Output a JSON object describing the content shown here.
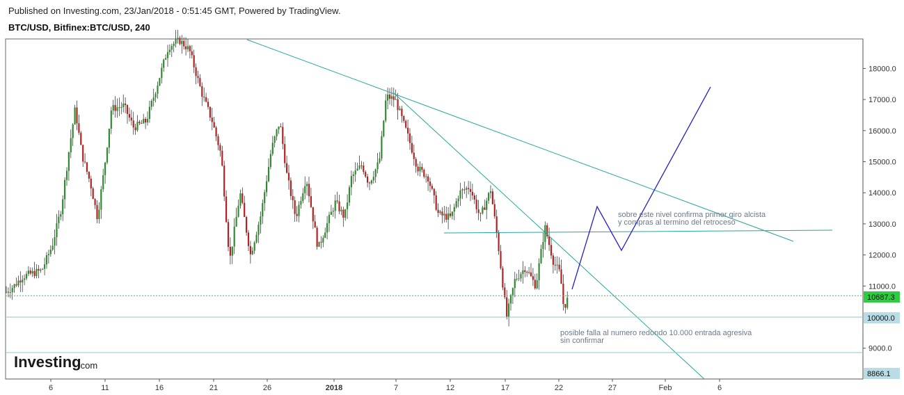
{
  "header": {
    "published": "Published on Investing.com, 23/Jan/2018 - 0:51:45 GMT, Powered by TradingView.",
    "symbol": "BTC/USD, Bitfinex:BTC/USD, 240"
  },
  "logo": {
    "text": "Investing",
    "suffix": ".com"
  },
  "chart_data": {
    "type": "candlestick",
    "y_ticks": [
      "18000.0",
      "17000.0",
      "16000.0",
      "15000.0",
      "14000.0",
      "13000.0",
      "12000.0",
      "11000.0",
      "9000.0"
    ],
    "x_ticks": [
      "6",
      "11",
      "16",
      "21",
      "26",
      "2018",
      "7",
      "12",
      "17",
      "22",
      "27",
      "Feb",
      "6"
    ],
    "ylim": [
      8700,
      19000
    ],
    "price_tags": [
      {
        "label": "10687.3",
        "value": 10687.3,
        "color": "#2ecc40"
      },
      {
        "label": "10000.0",
        "value": 10000.0,
        "color": "#b9dde6"
      },
      {
        "label": "8866.1",
        "value": 8866.1,
        "color": "#b9dde6"
      }
    ],
    "annotations": [
      {
        "lines": [
          "sobre este nivel confirma primer giro alcista",
          "y compras al termino del retroceso"
        ]
      },
      {
        "lines": [
          "posible falla al numero redondo 10.000 entrada agresiva",
          "sin confirmar"
        ]
      }
    ],
    "colors": {
      "up": "#2e8b2e",
      "down": "#b22222",
      "trendline": "#26a69a",
      "projection": "#2020cc",
      "axis": "#555555"
    }
  }
}
